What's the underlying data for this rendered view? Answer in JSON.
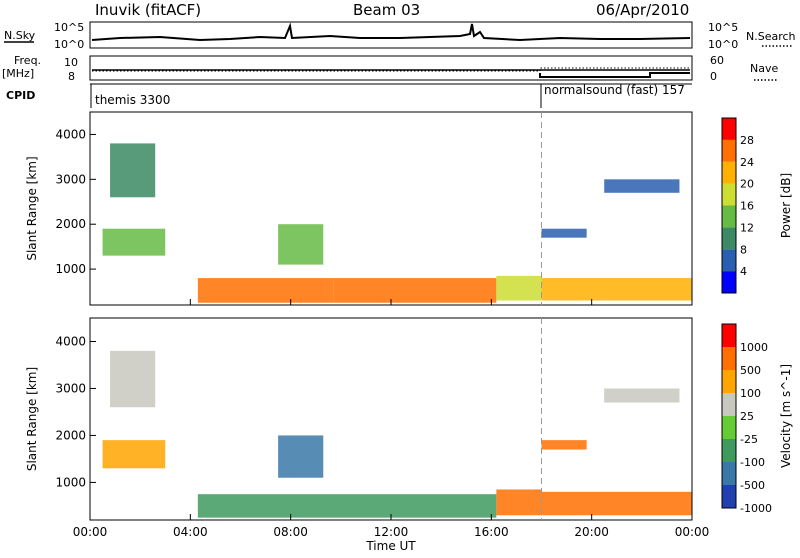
{
  "header": {
    "station": "Inuvik (fitACF)",
    "beam": "Beam 03",
    "date": "06/Apr/2010"
  },
  "nsky_panel": {
    "left_label": "N.Sky",
    "left_ticks": [
      "10^5",
      "10^0"
    ],
    "right_label": "N.Search",
    "right_ticks": [
      "10^5",
      "10^0"
    ]
  },
  "freq_panel": {
    "left_label_top": "Freq.",
    "left_label_unit": "[MHz]",
    "left_ticks": [
      "10",
      "8"
    ],
    "right_label": "Nave",
    "right_ticks": [
      "60",
      "0"
    ]
  },
  "cpid_panel": {
    "label": "CPID",
    "programs": [
      {
        "name": "themis 3300"
      },
      {
        "name": "normalsound (fast) 157"
      }
    ]
  },
  "colors": {
    "grey_scatter": "#c8c8c0",
    "missing": "#ffffff"
  },
  "chart_data": [
    {
      "type": "heatmap",
      "name": "power",
      "xlabel": "",
      "ylabel": "Slant Range [km]",
      "x_ticks": [
        "00:00",
        "04:00",
        "08:00",
        "12:00",
        "16:00",
        "20:00",
        "00:00"
      ],
      "y_ticks": [
        "1000",
        "2000",
        "3000",
        "4000"
      ],
      "xlim": [
        0,
        24
      ],
      "ylim": [
        200,
        4500
      ],
      "colorbar": {
        "label": "Power [dB]",
        "ticks": [
          "4",
          "8",
          "12",
          "16",
          "20",
          "24",
          "28"
        ],
        "colors": [
          "#0000ff",
          "#2a5fb0",
          "#3b8a64",
          "#66bb44",
          "#ccdd33",
          "#ffb000",
          "#ff7000",
          "#ff0000"
        ]
      },
      "regions": [
        {
          "t0": 0.5,
          "t1": 3.0,
          "r0": 1300,
          "r1": 1900,
          "level": 3
        },
        {
          "t0": 0.8,
          "t1": 2.6,
          "r0": 2600,
          "r1": 3800,
          "level": 2
        },
        {
          "t0": 4.3,
          "t1": 9.7,
          "r0": 250,
          "r1": 800,
          "level": 6
        },
        {
          "t0": 9.7,
          "t1": 16.2,
          "r0": 250,
          "r1": 800,
          "level": 6
        },
        {
          "t0": 16.2,
          "t1": 18.0,
          "r0": 300,
          "r1": 850,
          "level": 4
        },
        {
          "t0": 18.0,
          "t1": 24.0,
          "r0": 300,
          "r1": 800,
          "level": 5
        },
        {
          "t0": 18.0,
          "t1": 19.8,
          "r0": 1700,
          "r1": 1900,
          "level": 1
        },
        {
          "t0": 20.5,
          "t1": 23.5,
          "r0": 2700,
          "r1": 3000,
          "level": 1
        },
        {
          "t0": 7.5,
          "t1": 9.3,
          "r0": 1100,
          "r1": 2000,
          "level": 3
        }
      ]
    },
    {
      "type": "heatmap",
      "name": "velocity",
      "xlabel": "Time UT",
      "ylabel": "Slant Range [km]",
      "x_ticks": [
        "00:00",
        "04:00",
        "08:00",
        "12:00",
        "16:00",
        "20:00",
        "00:00"
      ],
      "y_ticks": [
        "1000",
        "2000",
        "3000",
        "4000"
      ],
      "xlim": [
        0,
        24
      ],
      "ylim": [
        200,
        4500
      ],
      "colorbar": {
        "label": "Velocity [m s^-1]",
        "ticks": [
          "1000",
          "500",
          "100",
          "25",
          "-25",
          "-100",
          "-500",
          "-1000"
        ],
        "colors": [
          "#2040b0",
          "#3a78a8",
          "#3e9a5e",
          "#66cc33",
          "#c8c8c0",
          "#ffa500",
          "#ff7000",
          "#ff0000"
        ]
      },
      "regions": [
        {
          "t0": 0.5,
          "t1": 3.0,
          "r0": 1300,
          "r1": 1900,
          "level": 5
        },
        {
          "t0": 0.8,
          "t1": 2.6,
          "r0": 2600,
          "r1": 3800,
          "level": 4
        },
        {
          "t0": 4.3,
          "t1": 16.2,
          "r0": 250,
          "r1": 750,
          "level": 2
        },
        {
          "t0": 16.2,
          "t1": 18.0,
          "r0": 300,
          "r1": 850,
          "level": 6
        },
        {
          "t0": 18.0,
          "t1": 24.0,
          "r0": 300,
          "r1": 800,
          "level": 6
        },
        {
          "t0": 18.0,
          "t1": 19.8,
          "r0": 1700,
          "r1": 1900,
          "level": 6
        },
        {
          "t0": 20.5,
          "t1": 23.5,
          "r0": 2700,
          "r1": 3000,
          "level": 4
        },
        {
          "t0": 7.5,
          "t1": 9.3,
          "r0": 1100,
          "r1": 2000,
          "level": 1
        }
      ]
    }
  ]
}
